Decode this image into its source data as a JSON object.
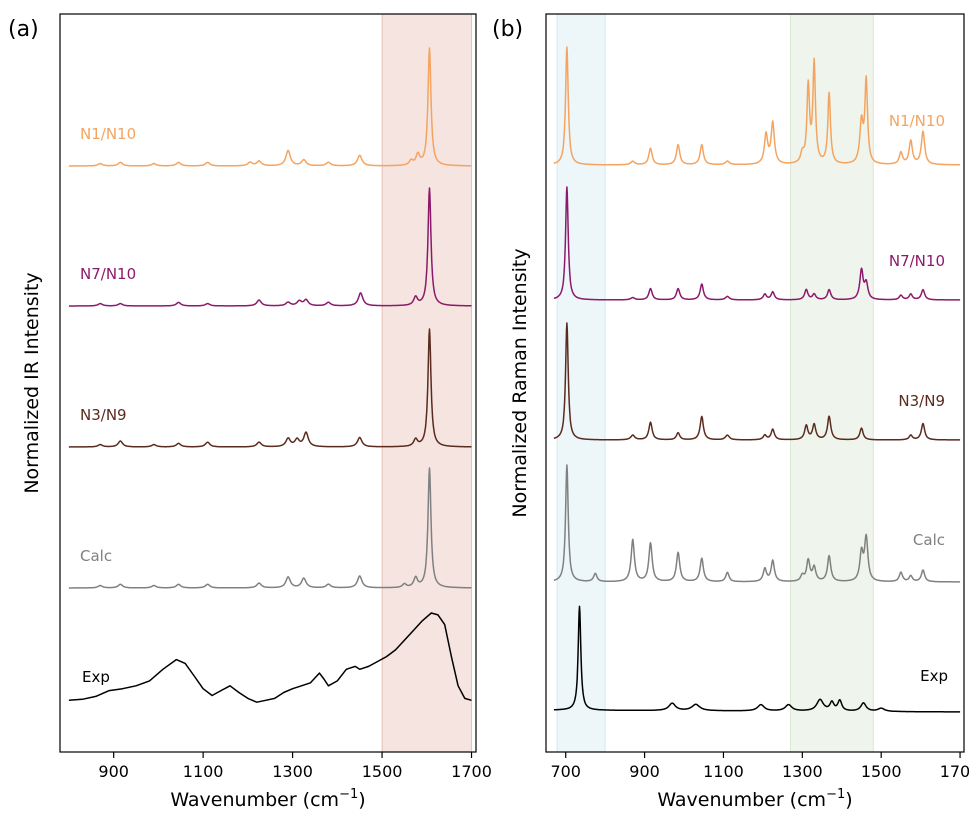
{
  "chart_data": [
    {
      "type": "line",
      "panel_label": "(a)",
      "xlabel_base": "Wavenumber (cm",
      "xlabel_exp": "−1",
      "xlabel_close": ")",
      "ylabel": "Normalized IR Intensity",
      "xlim": [
        780,
        1710
      ],
      "xticks": [
        900,
        1100,
        1300,
        1500,
        1700
      ],
      "x_tick_labels": [
        "900",
        "1100",
        "1300",
        "1500",
        "1700"
      ],
      "highlight_bands": [
        {
          "x": [
            1500,
            1700
          ],
          "color": "#c76b4b"
        }
      ],
      "series": [
        {
          "name": "N1/N10",
          "color": "#f4a460",
          "peaks": [
            [
              1606,
              1.0,
              4
            ],
            [
              1580,
              0.09,
              5
            ],
            [
              1565,
              0.04,
              5
            ],
            [
              1450,
              0.09,
              6
            ],
            [
              1380,
              0.03,
              6
            ],
            [
              1325,
              0.05,
              6
            ],
            [
              1290,
              0.13,
              6
            ],
            [
              1225,
              0.04,
              6
            ],
            [
              1205,
              0.03,
              6
            ],
            [
              1110,
              0.03,
              6
            ],
            [
              1045,
              0.03,
              6
            ],
            [
              990,
              0.02,
              6
            ],
            [
              915,
              0.03,
              6
            ],
            [
              870,
              0.02,
              6
            ]
          ]
        },
        {
          "name": "N7/N10",
          "color": "#8b1a6b",
          "peaks": [
            [
              1606,
              1.0,
              4
            ],
            [
              1575,
              0.07,
              5
            ],
            [
              1452,
              0.11,
              6
            ],
            [
              1380,
              0.03,
              6
            ],
            [
              1330,
              0.05,
              6
            ],
            [
              1315,
              0.04,
              6
            ],
            [
              1290,
              0.03,
              6
            ],
            [
              1225,
              0.05,
              6
            ],
            [
              1110,
              0.02,
              6
            ],
            [
              1045,
              0.03,
              6
            ],
            [
              915,
              0.02,
              6
            ],
            [
              870,
              0.02,
              6
            ]
          ]
        },
        {
          "name": "N3/N9",
          "color": "#5a2b1f",
          "peaks": [
            [
              1606,
              1.0,
              4
            ],
            [
              1575,
              0.06,
              5
            ],
            [
              1450,
              0.08,
              6
            ],
            [
              1330,
              0.12,
              6
            ],
            [
              1310,
              0.06,
              6
            ],
            [
              1290,
              0.07,
              6
            ],
            [
              1225,
              0.04,
              6
            ],
            [
              1110,
              0.04,
              6
            ],
            [
              1045,
              0.03,
              6
            ],
            [
              990,
              0.02,
              6
            ],
            [
              915,
              0.05,
              6
            ],
            [
              870,
              0.02,
              6
            ]
          ]
        },
        {
          "name": "Calc",
          "color": "#808080",
          "peaks": [
            [
              1606,
              1.0,
              4
            ],
            [
              1575,
              0.08,
              5
            ],
            [
              1550,
              0.03,
              5
            ],
            [
              1450,
              0.1,
              6
            ],
            [
              1380,
              0.03,
              6
            ],
            [
              1325,
              0.08,
              6
            ],
            [
              1290,
              0.09,
              6
            ],
            [
              1225,
              0.04,
              6
            ],
            [
              1110,
              0.03,
              6
            ],
            [
              1045,
              0.03,
              6
            ],
            [
              990,
              0.02,
              6
            ],
            [
              915,
              0.03,
              6
            ],
            [
              870,
              0.02,
              6
            ]
          ]
        },
        {
          "name": "Exp",
          "color": "#000000",
          "x": [
            800,
            830,
            860,
            890,
            920,
            950,
            980,
            1010,
            1040,
            1060,
            1080,
            1100,
            1120,
            1140,
            1160,
            1180,
            1200,
            1220,
            1240,
            1260,
            1280,
            1300,
            1320,
            1340,
            1360,
            1370,
            1380,
            1400,
            1420,
            1440,
            1450,
            1470,
            1490,
            1510,
            1530,
            1550,
            1570,
            1590,
            1610,
            1625,
            1640,
            1655,
            1670,
            1685,
            1700
          ],
          "y": [
            0.1,
            0.11,
            0.14,
            0.2,
            0.22,
            0.25,
            0.3,
            0.42,
            0.52,
            0.48,
            0.35,
            0.22,
            0.15,
            0.2,
            0.25,
            0.18,
            0.12,
            0.08,
            0.1,
            0.12,
            0.18,
            0.22,
            0.25,
            0.28,
            0.38,
            0.32,
            0.25,
            0.3,
            0.42,
            0.45,
            0.42,
            0.45,
            0.5,
            0.55,
            0.62,
            0.72,
            0.82,
            0.92,
            1.0,
            0.98,
            0.88,
            0.55,
            0.25,
            0.12,
            0.1
          ]
        }
      ]
    },
    {
      "type": "line",
      "panel_label": "(b)",
      "xlabel_base": "Wavenumber (cm",
      "xlabel_exp": "−1",
      "xlabel_close": ")",
      "ylabel": "Normalized Raman Intensity",
      "xlim": [
        650,
        1710
      ],
      "xticks": [
        700,
        900,
        1100,
        1300,
        1500,
        1700
      ],
      "x_tick_labels": [
        "700",
        "900",
        "1100",
        "1300",
        "1500",
        "1700"
      ],
      "highlight_bands": [
        {
          "x": [
            678,
            800
          ],
          "color": "#9ccfdb"
        },
        {
          "x": [
            1270,
            1480
          ],
          "color": "#a8c79a"
        }
      ],
      "series": [
        {
          "name": "N1/N10",
          "color": "#f4a460",
          "peaks": [
            [
              703,
              1.0,
              4
            ],
            [
              870,
              0.03,
              6
            ],
            [
              915,
              0.14,
              5
            ],
            [
              985,
              0.17,
              5
            ],
            [
              1045,
              0.17,
              5
            ],
            [
              1110,
              0.03,
              6
            ],
            [
              1208,
              0.25,
              5
            ],
            [
              1225,
              0.35,
              5
            ],
            [
              1300,
              0.08,
              5
            ],
            [
              1315,
              0.65,
              4
            ],
            [
              1330,
              0.85,
              4
            ],
            [
              1368,
              0.6,
              4
            ],
            [
              1450,
              0.35,
              5
            ],
            [
              1462,
              0.7,
              4
            ],
            [
              1550,
              0.1,
              5
            ],
            [
              1575,
              0.2,
              5
            ],
            [
              1606,
              0.28,
              5
            ]
          ]
        },
        {
          "name": "N7/N10",
          "color": "#8b1a6b",
          "peaks": [
            [
              703,
              1.0,
              4
            ],
            [
              870,
              0.02,
              6
            ],
            [
              915,
              0.1,
              5
            ],
            [
              985,
              0.1,
              5
            ],
            [
              1045,
              0.14,
              5
            ],
            [
              1110,
              0.03,
              6
            ],
            [
              1205,
              0.05,
              5
            ],
            [
              1225,
              0.07,
              5
            ],
            [
              1310,
              0.09,
              5
            ],
            [
              1330,
              0.05,
              5
            ],
            [
              1368,
              0.09,
              5
            ],
            [
              1450,
              0.26,
              5
            ],
            [
              1462,
              0.14,
              5
            ],
            [
              1550,
              0.04,
              5
            ],
            [
              1575,
              0.05,
              5
            ],
            [
              1606,
              0.09,
              5
            ]
          ]
        },
        {
          "name": "N3/N9",
          "color": "#5a2b1f",
          "peaks": [
            [
              703,
              1.0,
              4
            ],
            [
              870,
              0.04,
              6
            ],
            [
              915,
              0.15,
              5
            ],
            [
              985,
              0.06,
              5
            ],
            [
              1045,
              0.2,
              5
            ],
            [
              1110,
              0.04,
              6
            ],
            [
              1205,
              0.04,
              5
            ],
            [
              1225,
              0.09,
              5
            ],
            [
              1310,
              0.12,
              5
            ],
            [
              1330,
              0.13,
              5
            ],
            [
              1368,
              0.2,
              5
            ],
            [
              1450,
              0.1,
              5
            ],
            [
              1575,
              0.04,
              5
            ],
            [
              1606,
              0.14,
              5
            ]
          ]
        },
        {
          "name": "Calc",
          "color": "#808080",
          "peaks": [
            [
              703,
              1.0,
              4
            ],
            [
              775,
              0.07,
              5
            ],
            [
              870,
              0.36,
              5
            ],
            [
              915,
              0.33,
              5
            ],
            [
              985,
              0.25,
              5
            ],
            [
              1045,
              0.2,
              5
            ],
            [
              1110,
              0.08,
              5
            ],
            [
              1205,
              0.11,
              5
            ],
            [
              1225,
              0.18,
              5
            ],
            [
              1300,
              0.05,
              5
            ],
            [
              1315,
              0.18,
              5
            ],
            [
              1330,
              0.12,
              5
            ],
            [
              1368,
              0.22,
              5
            ],
            [
              1450,
              0.24,
              5
            ],
            [
              1462,
              0.37,
              5
            ],
            [
              1550,
              0.08,
              5
            ],
            [
              1575,
              0.05,
              5
            ],
            [
              1606,
              0.1,
              5
            ]
          ]
        },
        {
          "name": "Exp",
          "color": "#000000",
          "baseline": 0.02,
          "peaks": [
            [
              735,
              1.0,
              4
            ],
            [
              970,
              0.07,
              10
            ],
            [
              1030,
              0.06,
              12
            ],
            [
              1195,
              0.06,
              10
            ],
            [
              1265,
              0.06,
              10
            ],
            [
              1345,
              0.11,
              10
            ],
            [
              1375,
              0.08,
              6
            ],
            [
              1395,
              0.1,
              6
            ],
            [
              1455,
              0.08,
              8
            ],
            [
              1500,
              0.03,
              10
            ]
          ]
        }
      ]
    }
  ]
}
